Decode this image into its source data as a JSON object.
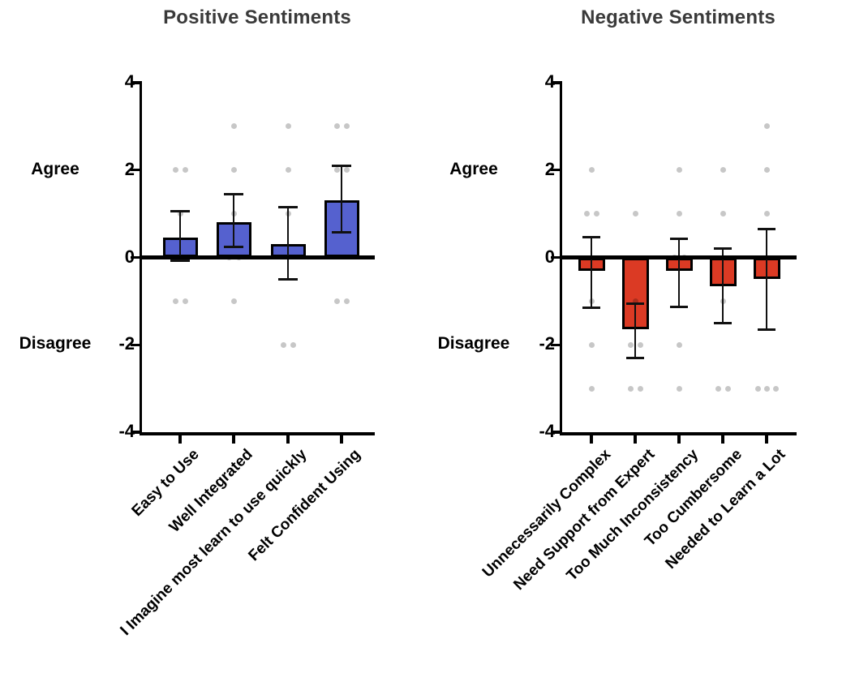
{
  "figure": {
    "background": "#FFFFFF"
  },
  "colors": {
    "positive_bar_fill": "#5561CF",
    "negative_bar_fill": "#DB3A24",
    "bar_outline": "#000000",
    "error_bar": "#111111",
    "data_point_dot": "rgba(0,0,0,0.22)",
    "axis": "#000000",
    "title_text": "#3A3A3A",
    "label_text": "#000000"
  },
  "chart_data": [
    {
      "type": "bar",
      "title": "Positive Sentiments",
      "ylim": [
        -4,
        4
      ],
      "grid": false,
      "legend": null,
      "bar_color": "#5561CF",
      "yticks": [
        {
          "value": 4,
          "label": "4"
        },
        {
          "value": 2,
          "label": "2"
        },
        {
          "value": 0,
          "label": "0"
        },
        {
          "value": -2,
          "label": "-2"
        },
        {
          "value": -4,
          "label": "-4"
        }
      ],
      "y_annotations": [
        {
          "label": "Agree",
          "value": 2
        },
        {
          "label": "Disagree",
          "value": -2
        }
      ],
      "categories": [
        "Easy to Use",
        "Well Integrated",
        "I Imagine most learn to use quickly",
        "Felt Confident Using"
      ],
      "bars": [
        {
          "mean": 0.45,
          "ci_low": -0.08,
          "ci_high": 1.05,
          "points": [
            {
              "v": 2,
              "dx": -6
            },
            {
              "v": 2,
              "dx": 6
            },
            {
              "v": 1,
              "dx": 0
            },
            {
              "v": -1,
              "dx": -6
            },
            {
              "v": -1,
              "dx": 6
            }
          ]
        },
        {
          "mean": 0.8,
          "ci_low": 0.25,
          "ci_high": 1.45,
          "points": [
            {
              "v": 3,
              "dx": 0
            },
            {
              "v": 2,
              "dx": 0
            },
            {
              "v": 1,
              "dx": 0
            },
            {
              "v": 0,
              "dx": -6
            },
            {
              "v": 0,
              "dx": 6
            },
            {
              "v": -1,
              "dx": 0
            }
          ]
        },
        {
          "mean": 0.3,
          "ci_low": -0.5,
          "ci_high": 1.15,
          "points": [
            {
              "v": 3,
              "dx": 0
            },
            {
              "v": 2,
              "dx": 0
            },
            {
              "v": 1,
              "dx": 0
            },
            {
              "v": -2,
              "dx": -6
            },
            {
              "v": -2,
              "dx": 6
            }
          ]
        },
        {
          "mean": 1.3,
          "ci_low": 0.57,
          "ci_high": 2.1,
          "points": [
            {
              "v": 3,
              "dx": -6
            },
            {
              "v": 3,
              "dx": 6
            },
            {
              "v": 2,
              "dx": -6
            },
            {
              "v": 2,
              "dx": 6
            },
            {
              "v": -1,
              "dx": -6
            },
            {
              "v": -1,
              "dx": 6
            }
          ]
        }
      ]
    },
    {
      "type": "bar",
      "title": "Negative Sentiments",
      "ylim": [
        -4,
        4
      ],
      "grid": false,
      "legend": null,
      "bar_color": "#DB3A24",
      "yticks": [
        {
          "value": 4,
          "label": "4"
        },
        {
          "value": 2,
          "label": "2"
        },
        {
          "value": 0,
          "label": "0"
        },
        {
          "value": -2,
          "label": "-2"
        },
        {
          "value": -4,
          "label": "-4"
        }
      ],
      "y_annotations": [
        {
          "label": "Agree",
          "value": 2
        },
        {
          "label": "Disagree",
          "value": -2
        }
      ],
      "categories": [
        "Unnecessarily Complex",
        "Need Support from Expert",
        "Too Much Inconsistency",
        "Too Cumbersome",
        "Needed to Learn a Lot"
      ],
      "bars": [
        {
          "mean": -0.3,
          "ci_low": -1.15,
          "ci_high": 0.47,
          "points": [
            {
              "v": 2,
              "dx": 0
            },
            {
              "v": 1,
              "dx": -6
            },
            {
              "v": 1,
              "dx": 6
            },
            {
              "v": -1,
              "dx": 0
            },
            {
              "v": -2,
              "dx": 0
            },
            {
              "v": -3,
              "dx": 0
            }
          ]
        },
        {
          "mean": -1.65,
          "ci_low": -2.3,
          "ci_high": -1.05,
          "points": [
            {
              "v": 1,
              "dx": 0
            },
            {
              "v": -1,
              "dx": 0
            },
            {
              "v": -2,
              "dx": -6
            },
            {
              "v": -2,
              "dx": 6
            },
            {
              "v": -3,
              "dx": -6
            },
            {
              "v": -3,
              "dx": 6
            }
          ]
        },
        {
          "mean": -0.3,
          "ci_low": -1.13,
          "ci_high": 0.43,
          "points": [
            {
              "v": 2,
              "dx": 0
            },
            {
              "v": 1,
              "dx": 0
            },
            {
              "v": 0,
              "dx": -6
            },
            {
              "v": 0,
              "dx": 6
            },
            {
              "v": -2,
              "dx": 0
            },
            {
              "v": -3,
              "dx": 0
            }
          ]
        },
        {
          "mean": -0.65,
          "ci_low": -1.5,
          "ci_high": 0.2,
          "points": [
            {
              "v": 2,
              "dx": 0
            },
            {
              "v": 1,
              "dx": 0
            },
            {
              "v": -1,
              "dx": 0
            },
            {
              "v": -3,
              "dx": -6
            },
            {
              "v": -3,
              "dx": 6
            }
          ]
        },
        {
          "mean": -0.5,
          "ci_low": -1.65,
          "ci_high": 0.65,
          "points": [
            {
              "v": 3,
              "dx": 0
            },
            {
              "v": 2,
              "dx": 0
            },
            {
              "v": 1,
              "dx": 0
            },
            {
              "v": -3,
              "dx": -11
            },
            {
              "v": -3,
              "dx": 0
            },
            {
              "v": -3,
              "dx": 11
            }
          ]
        }
      ]
    }
  ]
}
